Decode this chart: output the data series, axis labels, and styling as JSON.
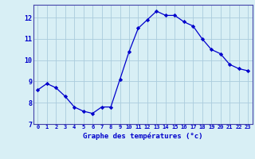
{
  "hours": [
    0,
    1,
    2,
    3,
    4,
    5,
    6,
    7,
    8,
    9,
    10,
    11,
    12,
    13,
    14,
    15,
    16,
    17,
    18,
    19,
    20,
    21,
    22,
    23
  ],
  "temperatures": [
    8.6,
    8.9,
    8.7,
    8.3,
    7.8,
    7.6,
    7.5,
    7.8,
    7.8,
    9.1,
    10.4,
    11.5,
    11.9,
    12.3,
    12.1,
    12.1,
    11.8,
    11.6,
    11.0,
    10.5,
    10.3,
    9.8,
    9.6,
    9.5
  ],
  "line_color": "#0000cc",
  "marker": "D",
  "marker_size": 2.2,
  "bg_color": "#d8eff5",
  "grid_color": "#aaccdd",
  "xlabel": "Graphe des températures (°c)",
  "xlabel_color": "#0000cc",
  "tick_color": "#0000cc",
  "spine_color": "#4444aa",
  "ylim": [
    7,
    12.6
  ],
  "xlim": [
    -0.5,
    23.5
  ],
  "yticks": [
    7,
    8,
    9,
    10,
    11,
    12
  ],
  "xtick_labels": [
    "0",
    "1",
    "2",
    "3",
    "4",
    "5",
    "6",
    "7",
    "8",
    "9",
    "10",
    "11",
    "12",
    "13",
    "14",
    "15",
    "16",
    "17",
    "18",
    "19",
    "20",
    "21",
    "22",
    "23"
  ]
}
